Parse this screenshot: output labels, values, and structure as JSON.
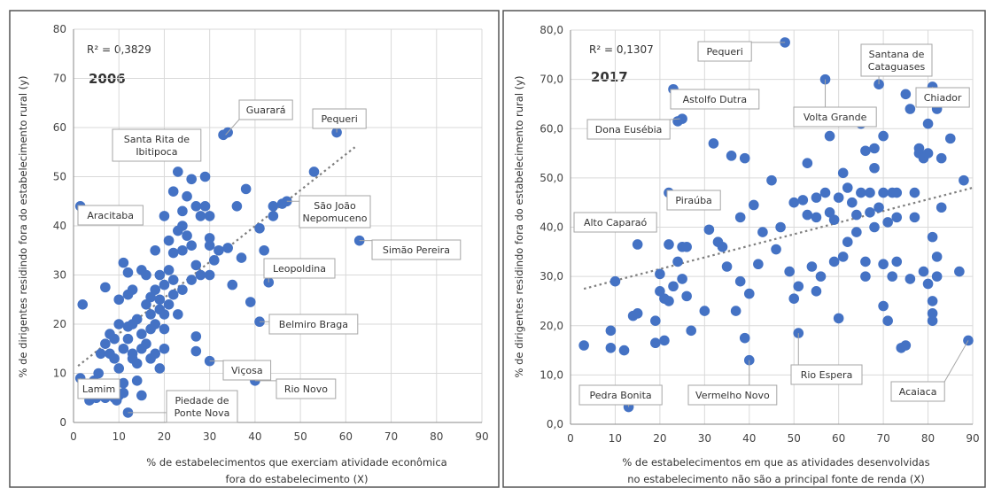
{
  "chart_data": [
    {
      "type": "scatter",
      "label_year": "2006",
      "r2": "R² = 0,3829",
      "ylabel": "% de dirigentes residindo fora do estabelecimento rural  (y)",
      "xlabel": [
        "% de estabelecimentos que exerciam atividade econômica",
        "fora do estabelecimento  (X)"
      ],
      "xlim": [
        0,
        90
      ],
      "ylim": [
        0,
        80
      ],
      "x_ticks": [
        "0",
        "10",
        "20",
        "30",
        "40",
        "50",
        "60",
        "70",
        "80",
        "90"
      ],
      "y_ticks": [
        "0",
        "10",
        "20",
        "30",
        "40",
        "50",
        "60",
        "70",
        "80"
      ],
      "trendline": [
        [
          1,
          11.5
        ],
        [
          62,
          56
        ]
      ],
      "points": [
        [
          1.5,
          44
        ],
        [
          2,
          24
        ],
        [
          1.5,
          9
        ],
        [
          3,
          6
        ],
        [
          3.5,
          4.5
        ],
        [
          5,
          5
        ],
        [
          6,
          5.5
        ],
        [
          7,
          5
        ],
        [
          8,
          6
        ],
        [
          9,
          5
        ],
        [
          9.5,
          4.5
        ],
        [
          10,
          5.5
        ],
        [
          11,
          6
        ],
        [
          12,
          2
        ],
        [
          10,
          11
        ],
        [
          11,
          8
        ],
        [
          8,
          14
        ],
        [
          9,
          17
        ],
        [
          10,
          20
        ],
        [
          7,
          27.5
        ],
        [
          8,
          18
        ],
        [
          9,
          13
        ],
        [
          10,
          25
        ],
        [
          11,
          32.5
        ],
        [
          12,
          26
        ],
        [
          11,
          15
        ],
        [
          12,
          17
        ],
        [
          12,
          30.5
        ],
        [
          13,
          20
        ],
        [
          13,
          14
        ],
        [
          14,
          21
        ],
        [
          14,
          12
        ],
        [
          15,
          18
        ],
        [
          15,
          15
        ],
        [
          15,
          31
        ],
        [
          16,
          24
        ],
        [
          16,
          30
        ],
        [
          16,
          16
        ],
        [
          17,
          22
        ],
        [
          17,
          13
        ],
        [
          17,
          19
        ],
        [
          18,
          20
        ],
        [
          18,
          14
        ],
        [
          18,
          35
        ],
        [
          18,
          27
        ],
        [
          19,
          25
        ],
        [
          19,
          11
        ],
        [
          19,
          30
        ],
        [
          20,
          42
        ],
        [
          20,
          28
        ],
        [
          20,
          15
        ],
        [
          20,
          22
        ],
        [
          21,
          24
        ],
        [
          21,
          31
        ],
        [
          22,
          29
        ],
        [
          22,
          26
        ],
        [
          22,
          34.5
        ],
        [
          22,
          47
        ],
        [
          23,
          39
        ],
        [
          23,
          22
        ],
        [
          23,
          51
        ],
        [
          24,
          40
        ],
        [
          24,
          35
        ],
        [
          24,
          43
        ],
        [
          24,
          27
        ],
        [
          25,
          46
        ],
        [
          25,
          56
        ],
        [
          25,
          38
        ],
        [
          26,
          49.5
        ],
        [
          26,
          36
        ],
        [
          26,
          29
        ],
        [
          27,
          44
        ],
        [
          27,
          14.5
        ],
        [
          27,
          32
        ],
        [
          27,
          17.5
        ],
        [
          28,
          42
        ],
        [
          28,
          30
        ],
        [
          29,
          50
        ],
        [
          29,
          44
        ],
        [
          30,
          37.5
        ],
        [
          30,
          30
        ],
        [
          30,
          42
        ],
        [
          30,
          36
        ],
        [
          31,
          33
        ],
        [
          32,
          35
        ],
        [
          33,
          58.5
        ],
        [
          34,
          59
        ],
        [
          34,
          35.5
        ],
        [
          35,
          28
        ],
        [
          36,
          44
        ],
        [
          37,
          33.5
        ],
        [
          38,
          47.5
        ],
        [
          39,
          24.5
        ],
        [
          41,
          39.5
        ],
        [
          42,
          35
        ],
        [
          43,
          28.5
        ],
        [
          44,
          44
        ],
        [
          44,
          42
        ],
        [
          46,
          44.5
        ],
        [
          47,
          45
        ],
        [
          53,
          51
        ],
        [
          58,
          59
        ],
        [
          63,
          37
        ],
        [
          41,
          20.5
        ],
        [
          40,
          8.5
        ],
        [
          30,
          12.5
        ],
        [
          15,
          5.5
        ],
        [
          14,
          8.5
        ],
        [
          4.5,
          8.5
        ],
        [
          6,
          14
        ],
        [
          7,
          16
        ],
        [
          5.5,
          10
        ],
        [
          19,
          23
        ],
        [
          17,
          25.5
        ],
        [
          12,
          19.5
        ],
        [
          13,
          27
        ],
        [
          21,
          37
        ],
        [
          20,
          19
        ],
        [
          13,
          13
        ]
      ],
      "annotations": [
        {
          "text": [
            "Santa Rita de",
            "Ibitipoca"
          ],
          "pt": [
            8.5,
            54
          ]
        },
        {
          "text": [
            "Guarará"
          ],
          "pt": [
            33.5,
            58.5
          ]
        },
        {
          "text": [
            "Pequeri"
          ],
          "pt": [
            58,
            59
          ]
        },
        {
          "text": [
            "Aracitaba"
          ],
          "pt": [
            1.5,
            44
          ]
        },
        {
          "text": [
            "São João",
            "Nepomuceno"
          ],
          "pt": [
            47,
            45
          ]
        },
        {
          "text": [
            "Simão Pereira"
          ],
          "pt": [
            63,
            37
          ]
        },
        {
          "text": [
            "Leopoldina"
          ],
          "pt": [
            43,
            28.5
          ]
        },
        {
          "text": [
            "Belmiro Braga"
          ],
          "pt": [
            41,
            20.5
          ]
        },
        {
          "text": [
            "Viçosa"
          ],
          "pt": [
            30,
            12.5
          ]
        },
        {
          "text": [
            "Rio Novo"
          ],
          "pt": [
            40,
            8.5
          ]
        },
        {
          "text": [
            "Lamim"
          ],
          "pt": [
            1.5,
            9
          ]
        },
        {
          "text": [
            "Piedade de",
            "Ponte Nova"
          ],
          "pt": [
            12,
            2
          ]
        }
      ]
    },
    {
      "type": "scatter",
      "label_year": "2017",
      "r2": "R² = 0,1307",
      "ylabel": "% de dirigentes residindo fora do estabelecimento rural  (y)",
      "xlabel": [
        "% de estabelecimentos em que as atividades desenvolvidas",
        "no estabelecimento não são a principal fonte de renda  (X)"
      ],
      "xlim": [
        0,
        90
      ],
      "ylim": [
        0,
        80
      ],
      "x_ticks": [
        "0",
        "10",
        "20",
        "30",
        "40",
        "50",
        "60",
        "70",
        "80",
        "90"
      ],
      "y_ticks": [
        "0,0",
        "10,0",
        "20,0",
        "30,0",
        "40,0",
        "50,0",
        "60,0",
        "70,0",
        "80,0"
      ],
      "trendline": [
        [
          3,
          27.5
        ],
        [
          90,
          48
        ]
      ],
      "points": [
        [
          3,
          16
        ],
        [
          9,
          15.5
        ],
        [
          9,
          19
        ],
        [
          12,
          15
        ],
        [
          10,
          29
        ],
        [
          14,
          22
        ],
        [
          15,
          22.5
        ],
        [
          15,
          36.5
        ],
        [
          19,
          16.5
        ],
        [
          19,
          21
        ],
        [
          20,
          30.5
        ],
        [
          20,
          27
        ],
        [
          21,
          25.5
        ],
        [
          21,
          17
        ],
        [
          22,
          36.5
        ],
        [
          22,
          25
        ],
        [
          23,
          28
        ],
        [
          23,
          68
        ],
        [
          24,
          33
        ],
        [
          24,
          61.5
        ],
        [
          25,
          62
        ],
        [
          25,
          29.5
        ],
        [
          25,
          36
        ],
        [
          26,
          36
        ],
        [
          26,
          26
        ],
        [
          27,
          19
        ],
        [
          13,
          3.5
        ],
        [
          22,
          47
        ],
        [
          30,
          23
        ],
        [
          31,
          39.5
        ],
        [
          32,
          57
        ],
        [
          33,
          37
        ],
        [
          34,
          36
        ],
        [
          35,
          32
        ],
        [
          36,
          54.5
        ],
        [
          37,
          23
        ],
        [
          38,
          29
        ],
        [
          38,
          42
        ],
        [
          39,
          54
        ],
        [
          39,
          17.5
        ],
        [
          40,
          13
        ],
        [
          40,
          26.5
        ],
        [
          41,
          44.5
        ],
        [
          42,
          32.5
        ],
        [
          43,
          39
        ],
        [
          45,
          49.5
        ],
        [
          46,
          35.5
        ],
        [
          47,
          40
        ],
        [
          48,
          77.5
        ],
        [
          49,
          31
        ],
        [
          50,
          45
        ],
        [
          50,
          25.5
        ],
        [
          51,
          18.5
        ],
        [
          51,
          28
        ],
        [
          52,
          45.5
        ],
        [
          53,
          53
        ],
        [
          53,
          42.5
        ],
        [
          54,
          32
        ],
        [
          55,
          42
        ],
        [
          55,
          46
        ],
        [
          55,
          27
        ],
        [
          56,
          30
        ],
        [
          57,
          70
        ],
        [
          57,
          47
        ],
        [
          58,
          58.5
        ],
        [
          58,
          43
        ],
        [
          59,
          41.5
        ],
        [
          60,
          21.5
        ],
        [
          60,
          46
        ],
        [
          61,
          51
        ],
        [
          61,
          34
        ],
        [
          62,
          37
        ],
        [
          62,
          48
        ],
        [
          63,
          61.5
        ],
        [
          63,
          45
        ],
        [
          64,
          39
        ],
        [
          64,
          42.5
        ],
        [
          65,
          47
        ],
        [
          65,
          61
        ],
        [
          66,
          33
        ],
        [
          66,
          30
        ],
        [
          66,
          55.5
        ],
        [
          67,
          47
        ],
        [
          67,
          43
        ],
        [
          68,
          56
        ],
        [
          68,
          40
        ],
        [
          68,
          52
        ],
        [
          69,
          69
        ],
        [
          69,
          44
        ],
        [
          70,
          58.5
        ],
        [
          70,
          47
        ],
        [
          70,
          24
        ],
        [
          70,
          32.5
        ],
        [
          71,
          21
        ],
        [
          71,
          41
        ],
        [
          72,
          47
        ],
        [
          72,
          30
        ],
        [
          73,
          42
        ],
        [
          73,
          33
        ],
        [
          74,
          15.5
        ],
        [
          75,
          67
        ],
        [
          75,
          16
        ],
        [
          76,
          64
        ],
        [
          76,
          29.5
        ],
        [
          77,
          47
        ],
        [
          77,
          42
        ],
        [
          78,
          56
        ],
        [
          78,
          55
        ],
        [
          79,
          54
        ],
        [
          79,
          31
        ],
        [
          80,
          61
        ],
        [
          80,
          55
        ],
        [
          80,
          28.5
        ],
        [
          81,
          68.5
        ],
        [
          81,
          38
        ],
        [
          81,
          22.5
        ],
        [
          81,
          21
        ],
        [
          82,
          64
        ],
        [
          82,
          34
        ],
        [
          82,
          30
        ],
        [
          83,
          54
        ],
        [
          83,
          44
        ],
        [
          85,
          58
        ],
        [
          87,
          31
        ],
        [
          88,
          49.5
        ],
        [
          89,
          17
        ],
        [
          81,
          25
        ],
        [
          73,
          47
        ],
        [
          59,
          33
        ]
      ],
      "annotations": [
        {
          "text": [
            "Pequeri"
          ],
          "pt": [
            48,
            77.5
          ]
        },
        {
          "text": [
            "Santana de",
            "Cataguases"
          ],
          "pt": [
            69,
            69
          ]
        },
        {
          "text": [
            "Astolfo Dutra"
          ],
          "pt": [
            23,
            68
          ]
        },
        {
          "text": [
            "Volta Grande"
          ],
          "pt": [
            57,
            70
          ]
        },
        {
          "text": [
            "Chiador"
          ],
          "pt": [
            81,
            68.5
          ]
        },
        {
          "text": [
            "Dona Eusébia"
          ],
          "pt": [
            24.5,
            62
          ]
        },
        {
          "text": [
            "Piraúba"
          ],
          "pt": [
            22,
            47
          ]
        },
        {
          "text": [
            "Alto Caparaó"
          ],
          "pt": [
            3,
            40
          ]
        },
        {
          "text": [
            "Rio Espera"
          ],
          "pt": [
            51,
            18.5
          ]
        },
        {
          "text": [
            "Vermelho Novo"
          ],
          "pt": [
            40,
            13
          ]
        },
        {
          "text": [
            "Pedra Bonita"
          ],
          "pt": [
            13,
            3.5
          ]
        },
        {
          "text": [
            "Acaiaca"
          ],
          "pt": [
            89,
            17
          ]
        }
      ]
    }
  ]
}
